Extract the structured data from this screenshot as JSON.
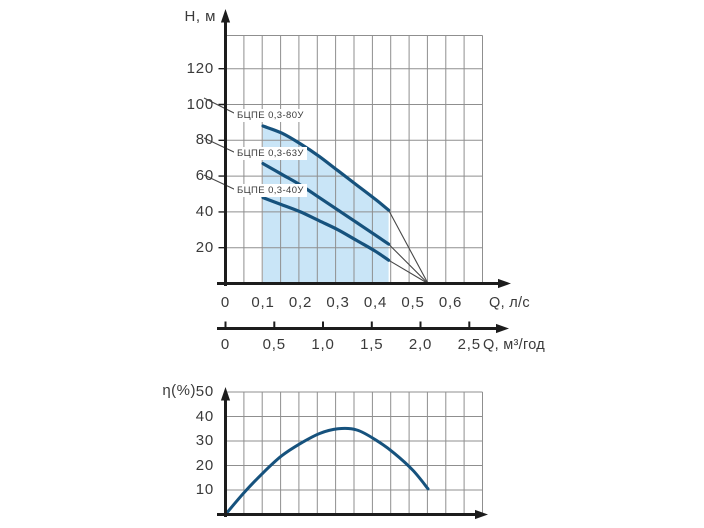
{
  "figure": {
    "description": "Pump performance curves: head vs flow for three BCPE pumps with operating region, plus efficiency curve",
    "background": "#ffffff",
    "accent_curve_color": "#16527d",
    "operating_region_color": "#c9e5f7",
    "grid_color": "#8f8f8f",
    "axis_color": "#1c1c1c",
    "text_color": "#3a3a3a",
    "leader_line_color": "#474747"
  },
  "chart_data": [
    {
      "id": "head_flow_curves",
      "type": "line",
      "ylabel": "Н, м",
      "xlabel": "Q, л/с",
      "x2label": "Q, м³/год",
      "ylim": [
        0,
        138
      ],
      "xlim": [
        0,
        0.685
      ],
      "x2lim": [
        0,
        2.64
      ],
      "grid": true,
      "minor_x_step": 0.05,
      "y_ticks": [
        20,
        40,
        60,
        80,
        100,
        120
      ],
      "x_ticks": [
        0,
        0.1,
        0.2,
        0.3,
        0.4,
        0.5,
        0.6
      ],
      "x_tick_labels": [
        "0",
        "0,1",
        "0,2",
        "0,3",
        "0,4",
        "0,5",
        "0,6"
      ],
      "x2_ticks": [
        0,
        0.5,
        1,
        1.5,
        2,
        2.5
      ],
      "x2_tick_labels": [
        "0",
        "0,5",
        "1,0",
        "1,5",
        "2,0",
        "2,5"
      ],
      "operating_region": {
        "q_start": 0.1,
        "q_end": 0.435
      },
      "curves_converge_at": {
        "q": 0.54,
        "h": 0
      },
      "series": [
        {
          "name": "БЦПЕ 0,3-80У",
          "points": [
            [
              0.1,
              88
            ],
            [
              0.15,
              84
            ],
            [
              0.2,
              78
            ],
            [
              0.25,
              71
            ],
            [
              0.3,
              63
            ],
            [
              0.35,
              55
            ],
            [
              0.4,
              47
            ],
            [
              0.435,
              41
            ]
          ]
        },
        {
          "name": "БЦПЕ 0,3-63У",
          "points": [
            [
              0.1,
              67
            ],
            [
              0.15,
              61
            ],
            [
              0.2,
              55
            ],
            [
              0.25,
              48
            ],
            [
              0.3,
              41
            ],
            [
              0.35,
              34
            ],
            [
              0.4,
              27
            ],
            [
              0.435,
              22
            ]
          ]
        },
        {
          "name": "БЦПЕ 0,3-40У",
          "points": [
            [
              0.1,
              48
            ],
            [
              0.15,
              44
            ],
            [
              0.2,
              40
            ],
            [
              0.25,
              35
            ],
            [
              0.3,
              30
            ],
            [
              0.35,
              24
            ],
            [
              0.4,
              18
            ],
            [
              0.435,
              13
            ]
          ]
        }
      ]
    },
    {
      "id": "efficiency_curve",
      "type": "line",
      "ylabel": "η(%)",
      "ylim": [
        0,
        52
      ],
      "grid": true,
      "y_ticks": [
        10,
        20,
        30,
        40,
        50
      ],
      "series": [
        {
          "name": "η",
          "points": [
            [
              0,
              0
            ],
            [
              0.05,
              9
            ],
            [
              0.1,
              17
            ],
            [
              0.15,
              24
            ],
            [
              0.2,
              29
            ],
            [
              0.25,
              33
            ],
            [
              0.3,
              35
            ],
            [
              0.35,
              34.5
            ],
            [
              0.4,
              30.5
            ],
            [
              0.45,
              25
            ],
            [
              0.5,
              18
            ],
            [
              0.54,
              10.5
            ]
          ]
        }
      ]
    }
  ]
}
